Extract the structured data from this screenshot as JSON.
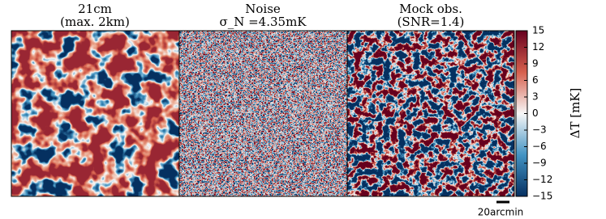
{
  "chart_data": {
    "type": "image",
    "panels": [
      {
        "title": "21cm",
        "subtitle": "(max. 2km)"
      },
      {
        "title": "Noise",
        "subtitle": "σ_N =4.35mK"
      },
      {
        "title": "Mock obs.",
        "subtitle": "(SNR=1.4)"
      }
    ],
    "colorbar": {
      "label": "ΔT [mK]",
      "lim": [
        -15,
        15
      ],
      "ticks": [
        15,
        12,
        9,
        6,
        3,
        0,
        {
          "value": -3,
          "label": "−3"
        },
        {
          "value": -6,
          "label": "−6"
        },
        {
          "value": -9,
          "label": "−9"
        },
        {
          "value": -12,
          "label": "−12"
        },
        {
          "value": -15,
          "label": "−15"
        }
      ],
      "colors": [
        "#053061",
        "#4393c3",
        "#f7f7f7",
        "#d6604d",
        "#67001f"
      ]
    },
    "scale_bar": "20arcmin"
  }
}
